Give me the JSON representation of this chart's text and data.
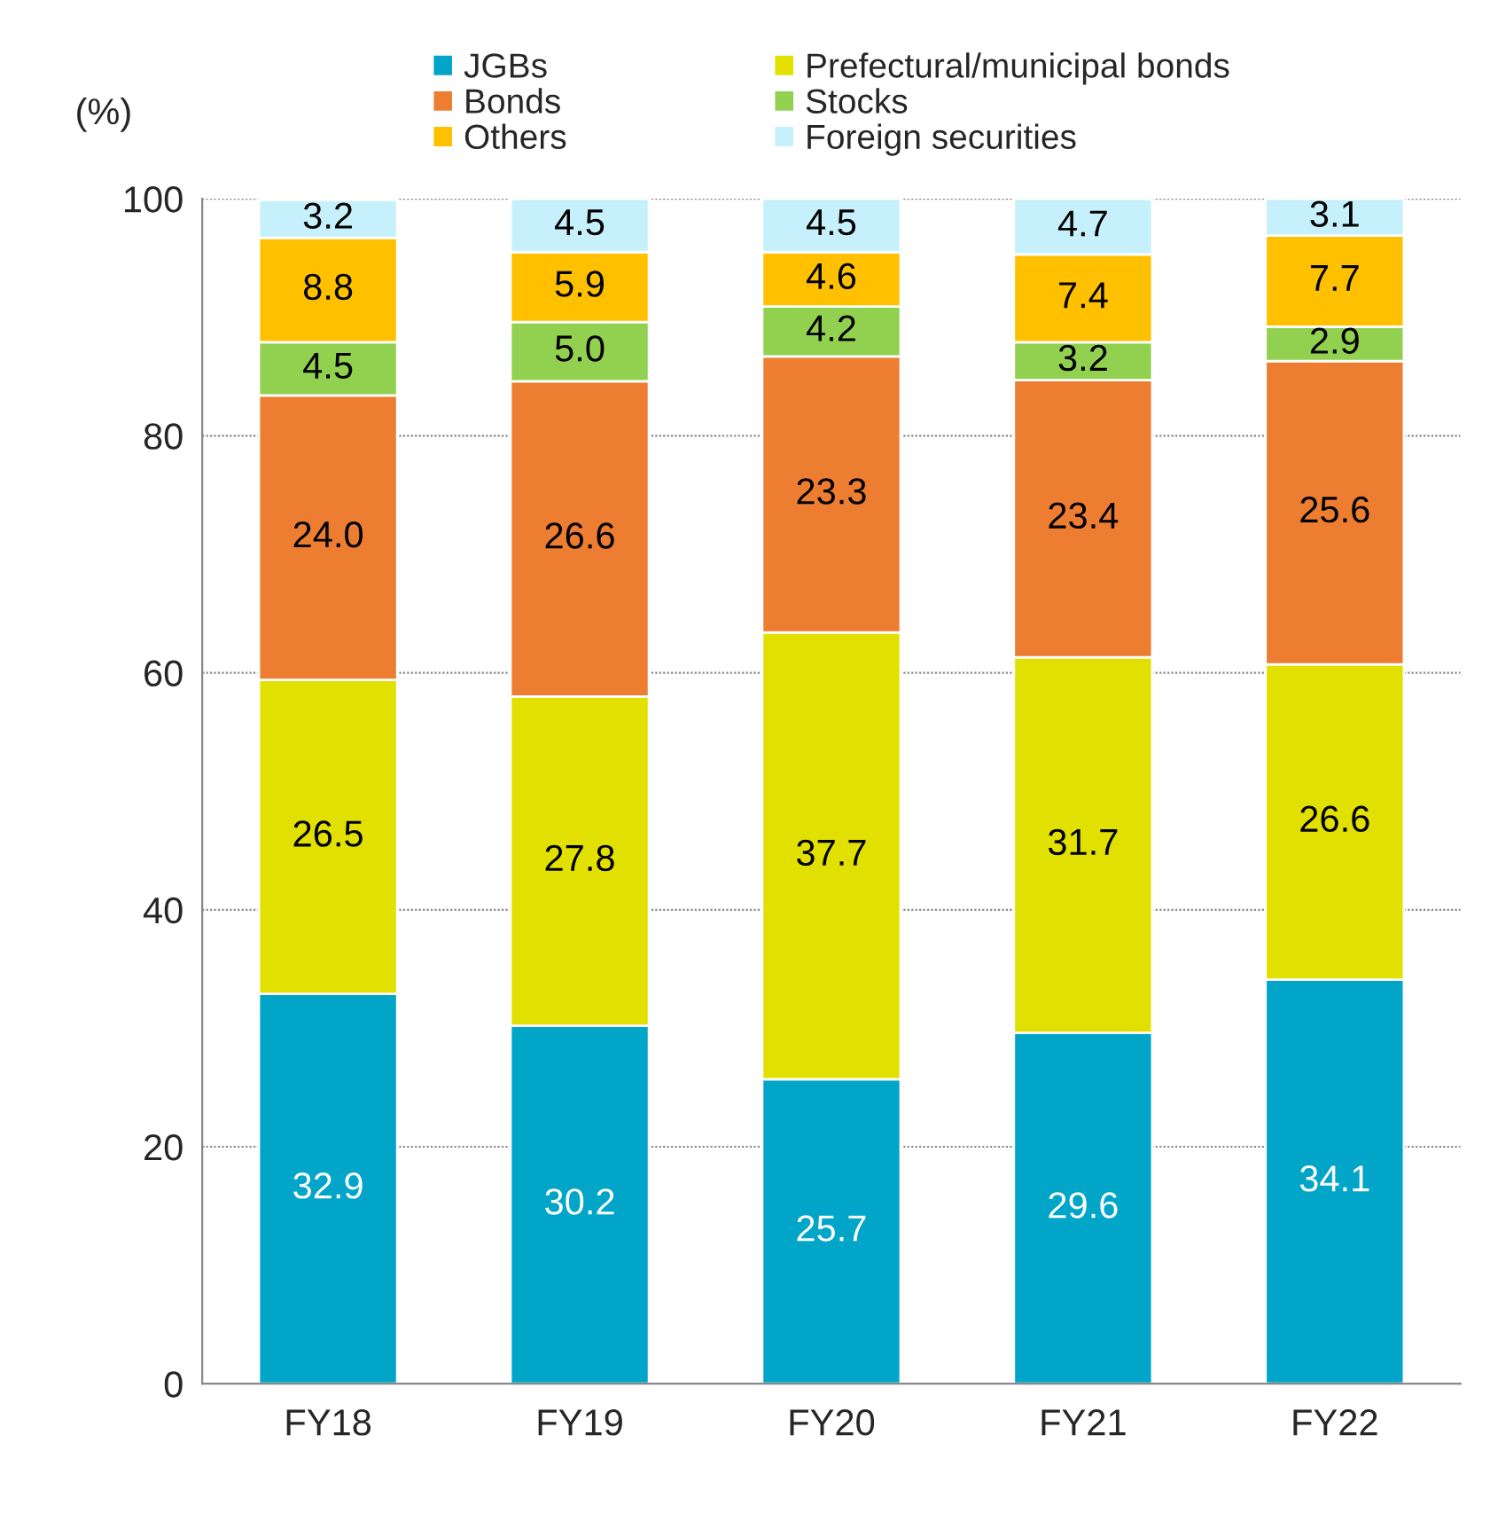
{
  "chart_data": {
    "type": "bar",
    "stacked": true,
    "ylabel": "(%)",
    "categories": [
      "FY18",
      "FY19",
      "FY20",
      "FY21",
      "FY22"
    ],
    "series": [
      {
        "name": "JGBs",
        "color": "#00a5c8",
        "values": [
          32.9,
          30.2,
          25.7,
          29.6,
          34.1
        ],
        "value_labels": [
          "32.9",
          "30.2",
          "25.7",
          "29.6",
          "34.1"
        ]
      },
      {
        "name": "Prefectural/municipal bonds",
        "color": "#e1e000",
        "values": [
          26.5,
          27.8,
          37.7,
          31.7,
          26.6
        ],
        "value_labels": [
          "26.5",
          "27.8",
          "37.7",
          "31.7",
          "26.6"
        ]
      },
      {
        "name": "Bonds",
        "color": "#ed7d31",
        "values": [
          24.0,
          26.6,
          23.3,
          23.4,
          25.6
        ],
        "value_labels": [
          "24.0",
          "26.6",
          "23.3",
          "23.4",
          "25.6"
        ]
      },
      {
        "name": "Stocks",
        "color": "#92d050",
        "values": [
          4.5,
          5.0,
          4.2,
          3.2,
          2.9
        ],
        "value_labels": [
          "4.5",
          "5.0",
          "4.2",
          "3.2",
          "2.9"
        ]
      },
      {
        "name": "Others",
        "color": "#ffc000",
        "values": [
          8.8,
          5.9,
          4.6,
          7.4,
          7.7
        ],
        "value_labels": [
          "8.8",
          "5.9",
          "4.6",
          "7.4",
          "7.7"
        ]
      },
      {
        "name": "Foreign securities",
        "color": "#c6f0fb",
        "values": [
          3.2,
          4.5,
          4.5,
          4.7,
          3.1
        ],
        "value_labels": [
          "3.2",
          "4.5",
          "4.5",
          "4.7",
          "3.1"
        ]
      }
    ],
    "ylim": [
      0,
      100
    ],
    "yticks": [
      0,
      20,
      40,
      60,
      80,
      100
    ],
    "grid": "y",
    "legend": "top"
  }
}
